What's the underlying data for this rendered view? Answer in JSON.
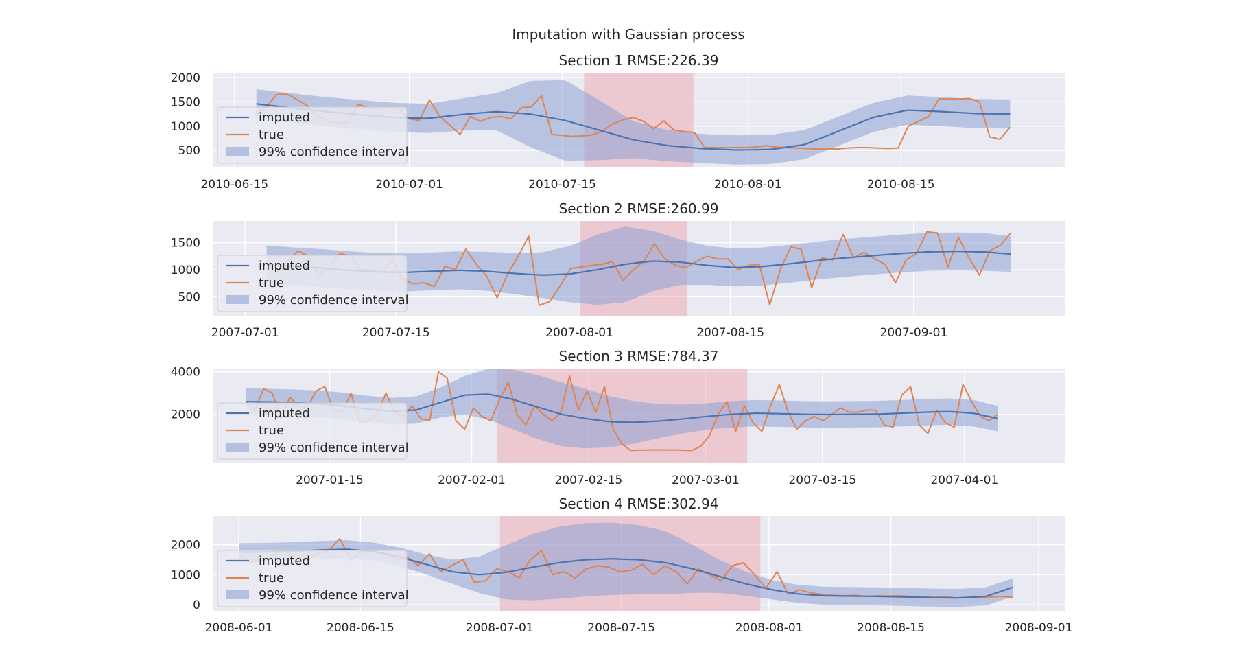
{
  "figure": {
    "title": "Imputation with Gaussian process"
  },
  "colors": {
    "imputed": "#4c72b0",
    "true": "#dd8452",
    "ci": "#8ea3d6",
    "gap": "#f0a0a8",
    "axes_bg": "#eaeaf2",
    "grid": "#ffffff"
  },
  "legend": {
    "imputed": "imputed",
    "true": "true",
    "ci": "99% confidence interval"
  },
  "chart_data": [
    {
      "type": "line",
      "title": "Section 1 RMSE:226.39",
      "x_type": "date",
      "x_start": "2010-06-17",
      "x_end": "2010-08-25",
      "xlim": [
        "2010-06-13",
        "2010-08-30"
      ],
      "xticks": [
        "2010-06-15",
        "2010-07-01",
        "2010-07-15",
        "2010-08-01",
        "2010-08-15"
      ],
      "ylim": [
        150,
        2100
      ],
      "yticks": [
        500,
        1000,
        1500,
        2000
      ],
      "gap": [
        "2010-07-17",
        "2010-07-27"
      ],
      "imputed": [
        1460,
        1380,
        1300,
        1240,
        1180,
        1160,
        1240,
        1300,
        1250,
        1120,
        920,
        720,
        600,
        540,
        510,
        520,
        620,
        900,
        1180,
        1330,
        1300,
        1260,
        1250
      ],
      "ci_halfwidth": [
        300,
        300,
        300,
        300,
        300,
        300,
        330,
        380,
        680,
        830,
        620,
        380,
        320,
        300,
        300,
        300,
        300,
        300,
        300,
        300,
        300,
        300,
        300
      ],
      "true": [
        1250,
        1400,
        1650,
        1660,
        1550,
        1420,
        1200,
        1100,
        1060,
        1080,
        1450,
        1380,
        1360,
        1390,
        1350,
        1150,
        1120,
        1540,
        1200,
        1020,
        830,
        1200,
        1100,
        1180,
        1200,
        1150,
        1380,
        1400,
        1630,
        830,
        810,
        790,
        800,
        820,
        900,
        1050,
        1130,
        1180,
        1100,
        950,
        1110,
        920,
        890,
        870,
        560,
        560,
        560,
        560,
        560,
        570,
        600,
        570,
        560,
        550,
        540,
        530,
        530,
        530,
        550,
        560,
        560,
        550,
        540,
        550,
        1000,
        1100,
        1200,
        1560,
        1560,
        1560,
        1570,
        1500,
        780,
        730,
        980
      ]
    },
    {
      "type": "line",
      "title": "Section 2 RMSE:260.99",
      "x_type": "date",
      "x_start": "2007-07-03",
      "x_end": "2007-09-10",
      "xlim": [
        "2007-06-28",
        "2007-09-15"
      ],
      "xticks": [
        "2007-07-01",
        "2007-07-15",
        "2007-08-01",
        "2007-08-15",
        "2007-09-01"
      ],
      "ylim": [
        150,
        1900
      ],
      "yticks": [
        500,
        1000,
        1500
      ],
      "gap": [
        "2007-08-01",
        "2007-08-11"
      ],
      "imputed": [
        1100,
        1060,
        1030,
        990,
        960,
        950,
        970,
        990,
        970,
        930,
        900,
        920,
        1000,
        1100,
        1160,
        1140,
        1080,
        1040,
        1060,
        1110,
        1170,
        1220,
        1260,
        1300,
        1330,
        1340,
        1330,
        1290
      ],
      "ci_halfwidth": [
        350,
        350,
        350,
        350,
        350,
        350,
        350,
        350,
        360,
        380,
        420,
        520,
        650,
        700,
        560,
        420,
        360,
        350,
        350,
        350,
        350,
        350,
        350,
        350,
        350,
        350,
        350,
        330
      ],
      "true": [
        1100,
        950,
        1150,
        1350,
        1250,
        900,
        1050,
        1300,
        1250,
        1000,
        1000,
        950,
        1180,
        820,
        740,
        760,
        690,
        1060,
        1000,
        1380,
        1100,
        880,
        480,
        920,
        1250,
        1620,
        340,
        410,
        700,
        1020,
        1050,
        1080,
        1100,
        1150,
        800,
        1000,
        1160,
        1480,
        1200,
        1080,
        1040,
        1150,
        1250,
        1200,
        1200,
        1000,
        1080,
        1100,
        350,
        1000,
        1420,
        1380,
        670,
        1220,
        1180,
        1650,
        1220,
        1320,
        1200,
        1100,
        760,
        1180,
        1300,
        1700,
        1680,
        1050,
        1600,
        1220,
        900,
        1350,
        1450,
        1680
      ]
    },
    {
      "type": "line",
      "title": "Section 3 RMSE:784.37",
      "x_type": "date",
      "x_start": "2007-01-05",
      "x_end": "2007-04-05",
      "xlim": [
        "2007-01-01",
        "2007-04-13"
      ],
      "xticks": [
        "2007-01-15",
        "2007-02-01",
        "2007-02-15",
        "2007-03-01",
        "2007-03-15",
        "2007-04-01"
      ],
      "ylim": [
        -300,
        4150
      ],
      "yticks": [
        2000,
        4000
      ],
      "gap": [
        "2007-02-04",
        "2007-03-06"
      ],
      "imputed": [
        2600,
        2580,
        2550,
        2500,
        2400,
        2250,
        2150,
        2200,
        2550,
        2900,
        2950,
        2700,
        2350,
        2000,
        1800,
        1650,
        1620,
        1680,
        1780,
        1900,
        2000,
        2050,
        2030,
        2000,
        1990,
        2000,
        2010,
        2050,
        2100,
        2130,
        2050,
        1800
      ],
      "ci_halfwidth": [
        620,
        620,
        620,
        620,
        620,
        620,
        620,
        640,
        700,
        900,
        1200,
        1400,
        1500,
        1500,
        1400,
        1200,
        1000,
        800,
        680,
        620,
        620,
        620,
        620,
        620,
        620,
        620,
        620,
        620,
        620,
        620,
        620,
        600
      ],
      "true": [
        2600,
        2200,
        3200,
        3000,
        1800,
        2800,
        2400,
        2300,
        3100,
        3300,
        2200,
        2100,
        3000,
        1600,
        1700,
        2000,
        3000,
        2100,
        1900,
        2400,
        1800,
        1700,
        4000,
        3700,
        1700,
        1300,
        2300,
        1900,
        1700,
        2700,
        3500,
        2000,
        1500,
        2400,
        2000,
        1700,
        2100,
        3800,
        2200,
        3100,
        2100,
        3300,
        1300,
        600,
        300,
        320,
        320,
        330,
        320,
        330,
        310,
        300,
        500,
        1000,
        2000,
        2600,
        1200,
        2400,
        1600,
        1200,
        2400,
        3400,
        2100,
        1300,
        1700,
        1900,
        1700,
        2000,
        2300,
        2100,
        2100,
        2200,
        2200,
        1500,
        1400,
        2900,
        3300,
        1500,
        1100,
        2200,
        1600,
        1400,
        3400,
        2600,
        1900,
        1700,
        2000
      ]
    },
    {
      "type": "line",
      "title": "Section 4 RMSE:302.94",
      "x_type": "date",
      "x_start": "2008-06-01",
      "x_end": "2008-08-29",
      "xlim": [
        "2008-05-29",
        "2008-09-04"
      ],
      "xticks": [
        "2008-06-01",
        "2008-06-15",
        "2008-07-01",
        "2008-07-15",
        "2008-08-01",
        "2008-08-15",
        "2008-09-01"
      ],
      "ylim": [
        -200,
        2950
      ],
      "yticks": [
        0,
        1000,
        2000
      ],
      "gap": [
        "2008-07-01",
        "2008-07-31"
      ],
      "imputed": [
        1750,
        1760,
        1780,
        1820,
        1850,
        1780,
        1600,
        1350,
        1100,
        1000,
        1080,
        1250,
        1400,
        1500,
        1530,
        1500,
        1400,
        1200,
        950,
        700,
        500,
        360,
        300,
        290,
        280,
        260,
        240,
        230,
        280,
        580
      ],
      "ci_halfwidth": [
        300,
        300,
        300,
        300,
        300,
        300,
        310,
        330,
        400,
        600,
        900,
        1100,
        1200,
        1220,
        1200,
        1150,
        1050,
        800,
        550,
        400,
        320,
        300,
        300,
        300,
        300,
        300,
        300,
        300,
        300,
        300
      ],
      "true": [
        1700,
        1400,
        1500,
        1650,
        1800,
        1600,
        1500,
        1700,
        1800,
        2200,
        1500,
        1800,
        1750,
        1700,
        1500,
        1600,
        1300,
        1700,
        1100,
        1300,
        1500,
        750,
        800,
        1200,
        1100,
        900,
        1500,
        1800,
        1000,
        1100,
        900,
        1200,
        1300,
        1250,
        1100,
        1150,
        1350,
        1000,
        1300,
        1100,
        700,
        1200,
        1000,
        800,
        1300,
        1400,
        1000,
        550,
        1100,
        350,
        500,
        400,
        350,
        320,
        300,
        320,
        280,
        300,
        300,
        300,
        280,
        260,
        250,
        270,
        230,
        250,
        250,
        260,
        280,
        250
      ]
    }
  ]
}
